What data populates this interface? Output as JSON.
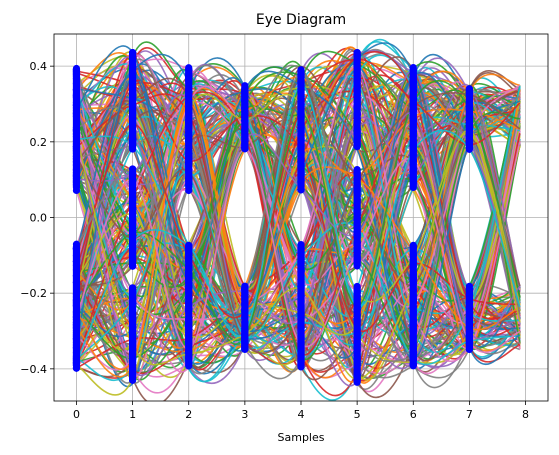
{
  "chart_data": {
    "type": "line",
    "title": "Eye Diagram",
    "xlabel": "Samples",
    "ylabel": "",
    "xlim": [
      -0.4,
      8.4
    ],
    "ylim": [
      -0.485,
      0.485
    ],
    "xticks": [
      0,
      1,
      2,
      3,
      4,
      5,
      6,
      7,
      8
    ],
    "xtick_labels": [
      "0",
      "1",
      "2",
      "3",
      "4",
      "5",
      "6",
      "7",
      "8"
    ],
    "yticks": [
      -0.4,
      -0.2,
      0.0,
      0.2,
      0.4
    ],
    "ytick_labels": [
      "−0.4",
      "−0.2",
      "0.0",
      "0.2",
      "0.4"
    ],
    "grid": true,
    "legend": "none",
    "trace_x": [
      0,
      1,
      2,
      3,
      4,
      5,
      6,
      7,
      7.9
    ],
    "trace_count": 300,
    "sample_points_x": [
      0,
      1,
      2,
      3,
      4,
      5,
      6,
      7
    ],
    "sample_marker_color": "#0000ff",
    "sample_bands": [
      {
        "x": 0,
        "ranges": [
          [
            0.07,
            0.4
          ],
          [
            -0.4,
            -0.07
          ]
        ]
      },
      {
        "x": 1,
        "ranges": [
          [
            0.18,
            0.44
          ],
          [
            -0.13,
            0.13
          ],
          [
            -0.44,
            -0.18
          ]
        ]
      },
      {
        "x": 2,
        "ranges": [
          [
            0.07,
            0.4
          ],
          [
            -0.4,
            -0.07
          ]
        ]
      },
      {
        "x": 3,
        "ranges": [
          [
            0.18,
            0.35
          ],
          [
            -0.35,
            -0.18
          ]
        ]
      },
      {
        "x": 4,
        "ranges": [
          [
            0.07,
            0.4
          ],
          [
            -0.4,
            -0.07
          ]
        ]
      },
      {
        "x": 5,
        "ranges": [
          [
            0.18,
            0.44
          ],
          [
            -0.13,
            0.13
          ],
          [
            -0.44,
            -0.18
          ]
        ]
      },
      {
        "x": 6,
        "ranges": [
          [
            0.07,
            0.4
          ],
          [
            -0.4,
            -0.07
          ]
        ]
      },
      {
        "x": 7,
        "ranges": [
          [
            0.18,
            0.35
          ],
          [
            -0.35,
            -0.18
          ]
        ]
      }
    ],
    "series_palette": [
      "#1f77b4",
      "#ff7f0e",
      "#2ca02c",
      "#d62728",
      "#9467bd",
      "#8c564b",
      "#e377c2",
      "#7f7f7f",
      "#bcbd22",
      "#17becf"
    ]
  }
}
